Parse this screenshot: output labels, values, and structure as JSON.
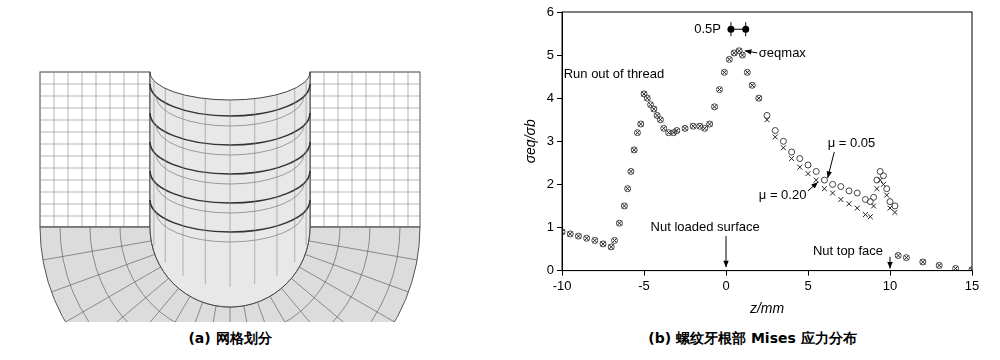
{
  "mesh_panel": {
    "caption": "(a) 网格划分"
  },
  "chart_data": {
    "type": "scatter",
    "caption": "(b) 螺纹牙根部 Mises 应力分布",
    "x_label": "z/mm",
    "y_label": "σeq/σb",
    "xlim": [
      -10,
      15
    ],
    "xticks": [
      -10,
      -5,
      0,
      5,
      10,
      15
    ],
    "ylim": [
      0,
      6
    ],
    "yticks": [
      0,
      1,
      2,
      3,
      4,
      5,
      6
    ],
    "grid": false,
    "series": [
      {
        "name": "μ = 0.05",
        "marker": "circle",
        "color": "#444444",
        "label_at": [
          6.2,
          2.95
        ],
        "label_arrow_from": [
          6.6,
          2.75
        ],
        "label_arrow_to": [
          6.2,
          2.15
        ],
        "x": [
          -10,
          -9.5,
          -9,
          -8.5,
          -8,
          -7.5,
          -7,
          -6.8,
          -6.5,
          -6.2,
          -6,
          -5.8,
          -5.6,
          -5.4,
          -5.2,
          -5,
          -4.8,
          -4.6,
          -4.4,
          -4.2,
          -4,
          -3.8,
          -3.5,
          -3.2,
          -3,
          -2.5,
          -2,
          -1.6,
          -1.3,
          -1,
          -0.7,
          -0.4,
          -0.1,
          0.2,
          0.5,
          0.8,
          1,
          1.3,
          1.6,
          2,
          2.5,
          3,
          3.5,
          4,
          4.5,
          5,
          5.5,
          6,
          6.5,
          7,
          7.5,
          8,
          8.5,
          8.8,
          9,
          9.2,
          9.4,
          9.6,
          9.8,
          10,
          10.3,
          10.5,
          11,
          12,
          13,
          14,
          15
        ],
        "values": [
          0.9,
          0.85,
          0.8,
          0.75,
          0.7,
          0.62,
          0.55,
          0.7,
          1.1,
          1.5,
          1.9,
          2.3,
          2.8,
          3.2,
          3.4,
          4.1,
          4.0,
          3.85,
          3.75,
          3.6,
          3.5,
          3.3,
          3.2,
          3.2,
          3.25,
          3.3,
          3.35,
          3.35,
          3.3,
          3.4,
          3.8,
          4.2,
          4.6,
          4.9,
          5.05,
          5.1,
          5.0,
          4.6,
          4.3,
          4.0,
          3.6,
          3.25,
          3.0,
          2.75,
          2.6,
          2.45,
          2.3,
          2.1,
          2.0,
          1.95,
          1.85,
          1.8,
          1.65,
          1.6,
          1.7,
          2.1,
          2.3,
          2.2,
          1.9,
          1.6,
          1.5,
          0.35,
          0.3,
          0.2,
          0.12,
          0.05,
          0.02
        ]
      },
      {
        "name": "μ = 0.20",
        "marker": "x",
        "color": "#222222",
        "label_at": [
          2.0,
          1.75
        ],
        "label_arrow_from": [
          5.0,
          1.85
        ],
        "label_arrow_to": [
          5.6,
          2.05
        ],
        "x": [
          -10,
          -9.5,
          -9,
          -8.5,
          -8,
          -7.5,
          -7,
          -6.8,
          -6.5,
          -6.2,
          -6,
          -5.8,
          -5.6,
          -5.4,
          -5.2,
          -5,
          -4.8,
          -4.6,
          -4.4,
          -4.2,
          -4,
          -3.8,
          -3.5,
          -3.2,
          -3,
          -2.5,
          -2,
          -1.6,
          -1.3,
          -1,
          -0.7,
          -0.4,
          -0.1,
          0.2,
          0.5,
          0.8,
          1,
          1.3,
          1.6,
          2,
          2.5,
          3,
          3.5,
          4,
          4.5,
          5,
          5.5,
          6,
          6.5,
          7,
          7.5,
          8,
          8.5,
          8.8,
          9,
          9.2,
          9.4,
          9.6,
          9.8,
          10,
          10.3,
          10.5,
          11,
          12,
          13,
          14,
          15
        ],
        "values": [
          0.9,
          0.85,
          0.8,
          0.75,
          0.7,
          0.62,
          0.55,
          0.7,
          1.1,
          1.5,
          1.9,
          2.3,
          2.8,
          3.2,
          3.4,
          4.1,
          4.0,
          3.85,
          3.75,
          3.6,
          3.5,
          3.3,
          3.2,
          3.2,
          3.25,
          3.3,
          3.35,
          3.35,
          3.3,
          3.4,
          3.8,
          4.2,
          4.6,
          4.9,
          5.05,
          5.1,
          5.0,
          4.6,
          4.3,
          4.0,
          3.5,
          3.1,
          2.85,
          2.6,
          2.4,
          2.25,
          2.1,
          1.9,
          1.8,
          1.65,
          1.55,
          1.45,
          1.3,
          1.25,
          1.5,
          1.9,
          2.1,
          2.0,
          1.75,
          1.45,
          1.35,
          0.35,
          0.3,
          0.2,
          0.12,
          0.05,
          0.02
        ]
      }
    ],
    "annotations": [
      {
        "text": "0.5P",
        "x": [
          0.3,
          1.2
        ],
        "y": 5.6
      },
      {
        "text": "σeqmax",
        "x": 2.0,
        "y": 5.05,
        "arrow_from": [
          1.9,
          5.05
        ],
        "arrow_to": [
          1.15,
          5.1
        ]
      },
      {
        "text": "Run out of thread",
        "x": -9.9,
        "y": 4.55
      },
      {
        "text": "Nut loaded surface",
        "x": -4.6,
        "y": 1.0,
        "arrow_from": [
          0,
          0.8
        ],
        "arrow_to": [
          0,
          0.08
        ]
      },
      {
        "text": "Nut top face",
        "x": 5.3,
        "y": 0.45,
        "arrow_from": [
          10,
          0.32
        ],
        "arrow_to": [
          10,
          0.05
        ]
      }
    ]
  }
}
